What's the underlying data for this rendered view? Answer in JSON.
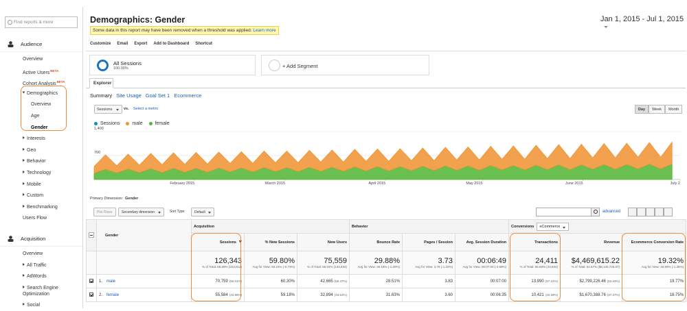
{
  "sidebar": {
    "search_placeholder": "Find reports & more",
    "sections": [
      {
        "title": "Audience",
        "items": [
          {
            "label": "Overview"
          },
          {
            "label": "Active Users",
            "badge": "BETA"
          },
          {
            "label": "Cohort Analysis",
            "badge": "BETA"
          },
          {
            "label": "Demographics",
            "expandable": true,
            "expanded": true,
            "children": [
              {
                "label": "Overview"
              },
              {
                "label": "Age"
              },
              {
                "label": "Gender",
                "selected": true
              }
            ]
          },
          {
            "label": "Interests",
            "expandable": true
          },
          {
            "label": "Geo",
            "expandable": true
          },
          {
            "label": "Behavior",
            "expandable": true
          },
          {
            "label": "Technology",
            "expandable": true
          },
          {
            "label": "Mobile",
            "expandable": true
          },
          {
            "label": "Custom",
            "expandable": true
          },
          {
            "label": "Benchmarking",
            "expandable": true
          },
          {
            "label": "Users Flow"
          }
        ]
      },
      {
        "title": "Acquisition",
        "items": [
          {
            "label": "Overview"
          },
          {
            "label": "All Traffic",
            "expandable": true
          },
          {
            "label": "AdWords",
            "expandable": true
          },
          {
            "label": "Search Engine Optimization",
            "expandable": true
          },
          {
            "label": "Social",
            "expandable": true
          }
        ]
      }
    ]
  },
  "header": {
    "title": "Demographics: Gender",
    "notice": "Some data in this report may have been removed when a threshold was applied.",
    "notice_link": "Learn more",
    "date_range": "Jan 1, 2015 - Jul 1, 2015"
  },
  "toolbar": [
    "Customize",
    "Email",
    "Export",
    "Add to Dashboard",
    "Shortcut"
  ],
  "segments": {
    "active": "All Sessions",
    "active_share": "100.00%",
    "add": "+ Add Segment"
  },
  "tab": "Explorer",
  "subtabs": [
    "Summary",
    "Site Usage",
    "Goal Set 1",
    "Ecommerce"
  ],
  "metric": {
    "selected": "Sessions",
    "vs": "vs.",
    "other": "Select a metric"
  },
  "periods": [
    "Day",
    "Week",
    "Month"
  ],
  "chart_data": {
    "type": "stacked_area",
    "total_name": "Sessions",
    "total_color": "#058dc7",
    "grid": true,
    "x": [
      0,
      3.5,
      7,
      10.5,
      14,
      17.5,
      21,
      24.5,
      28,
      31.5,
      35,
      38.5,
      42,
      45.5,
      49,
      52.5,
      56,
      59.5,
      63,
      66.5,
      70,
      73.5,
      77,
      80.5,
      84,
      87.5,
      91,
      94.5,
      98,
      101.5,
      105,
      108.5,
      112,
      115.5,
      119,
      122.5,
      126,
      129.5,
      133,
      136.5,
      140,
      143.5,
      147,
      150.5,
      154,
      157.5,
      161,
      164.5,
      168,
      171.5,
      175,
      178.5
    ],
    "xlim": [
      0,
      181
    ],
    "xticks": [
      {
        "value": 31,
        "label": "February 2015"
      },
      {
        "value": 59,
        "label": "March 2015"
      },
      {
        "value": 90,
        "label": "April 2015"
      },
      {
        "value": 120,
        "label": "May 2015"
      },
      {
        "value": 151,
        "label": "June 2015"
      },
      {
        "value": 181,
        "label": "July 2"
      }
    ],
    "ylim": [
      0,
      1400
    ],
    "yticks": [
      700,
      {
        "value": 1400,
        "label": "1,400"
      }
    ],
    "series": [
      {
        "name": "male",
        "color": "#f0922f",
        "values": [
          200,
          420,
          210,
          430,
          220,
          440,
          230,
          450,
          230,
          460,
          240,
          460,
          250,
          470,
          250,
          480,
          260,
          480,
          260,
          490,
          270,
          500,
          270,
          510,
          280,
          510,
          280,
          520,
          290,
          530,
          290,
          540,
          300,
          550,
          300,
          560,
          310,
          570,
          310,
          580,
          320,
          590,
          320,
          600,
          330,
          610,
          330,
          620,
          340,
          630,
          340,
          640
        ]
      },
      {
        "name": "female",
        "color": "#50b432",
        "values": [
          180,
          300,
          190,
          310,
          200,
          320,
          200,
          330,
          210,
          330,
          210,
          340,
          220,
          340,
          220,
          350,
          230,
          350,
          230,
          360,
          240,
          360,
          240,
          370,
          250,
          380,
          250,
          380,
          260,
          390,
          260,
          400,
          270,
          400,
          270,
          410,
          280,
          410,
          280,
          420,
          290,
          430,
          290,
          430,
          300,
          440,
          300,
          440,
          310,
          450,
          310,
          450
        ]
      }
    ]
  },
  "dimension": {
    "label": "Primary Dimension:",
    "value": "Gender"
  },
  "controls": {
    "plot_rows": "Plot Rows",
    "secondary": "Secondary dimension",
    "sort_label": "Sort Type:",
    "sort": "Default",
    "advanced": "advanced"
  },
  "table": {
    "dimension": "Gender",
    "groups": [
      {
        "label": "Acquisition",
        "columns": [
          "Sessions",
          "% New Sessions",
          "New Users"
        ]
      },
      {
        "label": "Behavior",
        "columns": [
          "Bounce Rate",
          "Pages / Session",
          "Avg. Session Duration"
        ]
      },
      {
        "label": "Conversions",
        "selector": "eCommerce",
        "columns": [
          "Transactions",
          "Revenue",
          "Ecommerce Conversion Rate"
        ]
      }
    ],
    "totals": [
      {
        "value": "126,343",
        "note": "% of Total: 56.65% (223,012)"
      },
      {
        "value": "59.80%",
        "note": "Avg for View: 60.24% (-0.73%)"
      },
      {
        "value": "75,559",
        "note": "% of Total: 56.04% (134,834)"
      },
      {
        "value": "29.88%",
        "note": "Avg for View: 30.18% (-1.00%)"
      },
      {
        "value": "3.73",
        "note": "Avg for View: 3.78 (-1.32%)"
      },
      {
        "value": "00:06:49",
        "note": "Avg for View: 00:07:00 (-2.69%)"
      },
      {
        "value": "24,411",
        "note": "% of Total: 55.69% (43,834)"
      },
      {
        "value": "$4,469,615.22",
        "note": "% of Total: 54.67% ($8,145,725.07)"
      },
      {
        "value": "19.32%",
        "note": "Avg for View: 19.59% (-1.35%)"
      }
    ],
    "rows": [
      {
        "index": "1.",
        "label": "male",
        "cells": [
          {
            "value": "70,759",
            "share": "(56.01%)"
          },
          {
            "value": "60.30%"
          },
          {
            "value": "42,665",
            "share": "(56.47%)"
          },
          {
            "value": "28.51%"
          },
          {
            "value": "3.83"
          },
          {
            "value": "00:07:00"
          },
          {
            "value": "13,990",
            "share": "(57.31%)"
          },
          {
            "value": "$2,799,226.46",
            "share": "(62.63%)"
          },
          {
            "value": "19.77%"
          }
        ]
      },
      {
        "index": "2.",
        "label": "female",
        "cells": [
          {
            "value": "55,584",
            "share": "(43.99%)"
          },
          {
            "value": "59.18%"
          },
          {
            "value": "32,894",
            "share": "(43.53%)"
          },
          {
            "value": "31.63%"
          },
          {
            "value": "3.60"
          },
          {
            "value": "00:06:35"
          },
          {
            "value": "10,421",
            "share": "(42.69%)"
          },
          {
            "value": "$1,670,388.76",
            "share": "(37.37%)"
          },
          {
            "value": "18.75%"
          }
        ]
      }
    ]
  }
}
